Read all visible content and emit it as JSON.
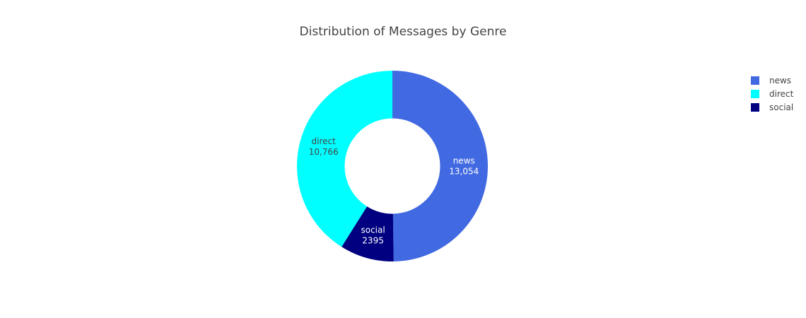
{
  "chart_data": {
    "type": "pie",
    "title": "Distribution of Messages by Genre",
    "hole": 0.5,
    "slices": [
      {
        "label": "news",
        "value": 13054,
        "value_text": "13,054",
        "color": "#4169E1",
        "text_color": "#ffffff"
      },
      {
        "label": "social",
        "value": 2395,
        "value_text": "2395",
        "color": "#000080",
        "text_color": "#ffffff"
      },
      {
        "label": "direct",
        "value": 10766,
        "value_text": "10,766",
        "color": "#00FFFF",
        "text_color": "#444444"
      }
    ],
    "legend": {
      "placement": "top-right",
      "entries": [
        {
          "label": "news",
          "color": "#4169E1"
        },
        {
          "label": "direct",
          "color": "#00FFFF"
        },
        {
          "label": "social",
          "color": "#000080"
        }
      ]
    }
  }
}
